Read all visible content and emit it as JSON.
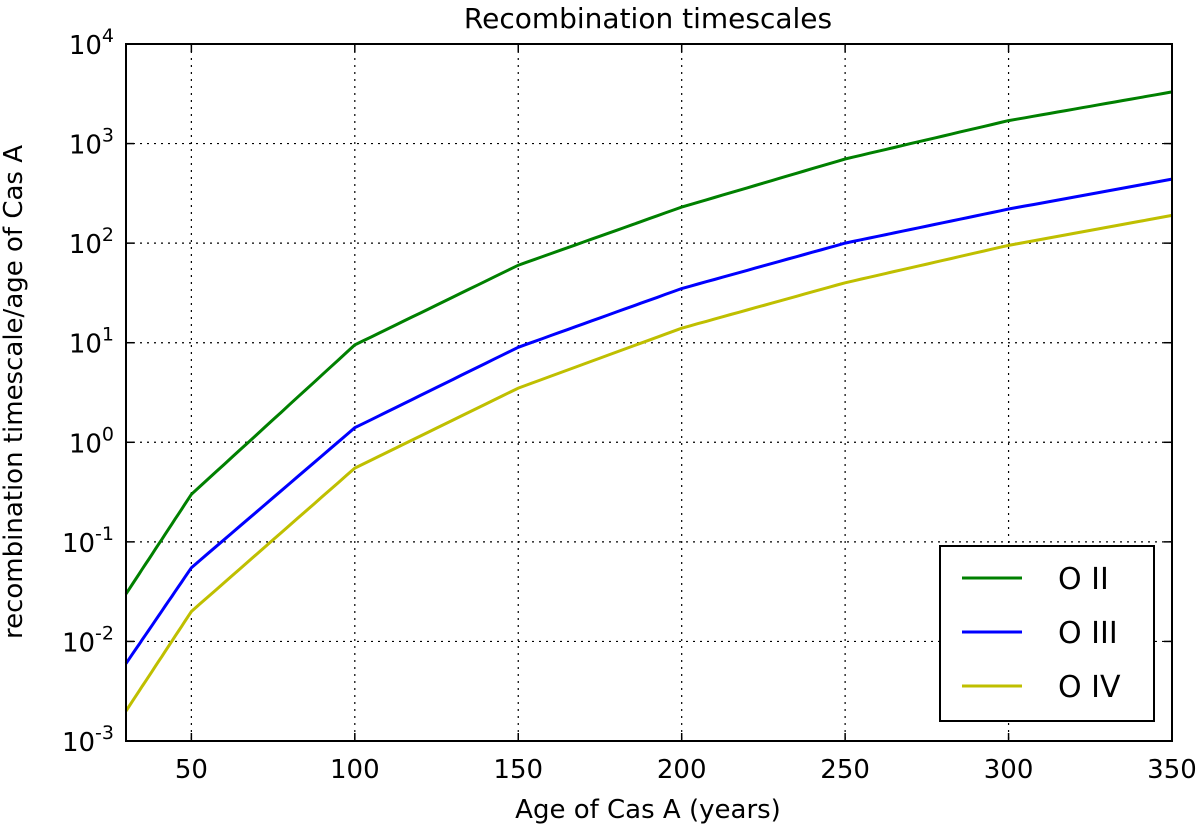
{
  "chart_data": {
    "type": "line",
    "title": "Recombination timescales",
    "xlabel": "Age of Cas A (years)",
    "ylabel": "recombination timescale/age of Cas A",
    "xlim": [
      30,
      350
    ],
    "ylim": [
      0.001,
      10000
    ],
    "yscale": "log",
    "grid": true,
    "legend_position": "lower-right",
    "x_ticks": [
      "50",
      "100",
      "150",
      "200",
      "250",
      "300",
      "350"
    ],
    "y_ticks": [
      {
        "base": "10",
        "exp": "-3"
      },
      {
        "base": "10",
        "exp": "-2"
      },
      {
        "base": "10",
        "exp": "-1"
      },
      {
        "base": "10",
        "exp": "0"
      },
      {
        "base": "10",
        "exp": "1"
      },
      {
        "base": "10",
        "exp": "2"
      },
      {
        "base": "10",
        "exp": "3"
      },
      {
        "base": "10",
        "exp": "4"
      }
    ],
    "x": [
      30,
      50,
      100,
      150,
      200,
      250,
      300,
      350
    ],
    "series": [
      {
        "name": "O II",
        "color": "#008000",
        "values": [
          0.03,
          0.3,
          9.5,
          60,
          230,
          700,
          1700,
          3300
        ]
      },
      {
        "name": "O III",
        "color": "#0000ff",
        "values": [
          0.006,
          0.055,
          1.4,
          9.0,
          35,
          100,
          220,
          440
        ]
      },
      {
        "name": "O IV",
        "color": "#bfbf00",
        "values": [
          0.002,
          0.02,
          0.55,
          3.5,
          14,
          40,
          95,
          190
        ]
      }
    ]
  }
}
